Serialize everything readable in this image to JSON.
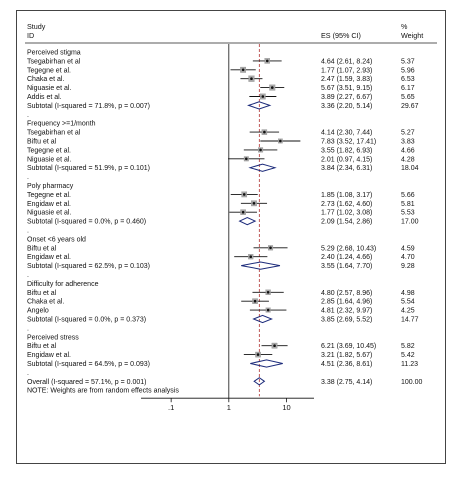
{
  "headers": {
    "study": "Study",
    "id": "ID",
    "es": "ES (95% CI)",
    "pct": "%",
    "weight": "Weight"
  },
  "chart_data": {
    "type": "forest",
    "x_scale": "log",
    "xlim": [
      0.03,
      30
    ],
    "x_ticks": [
      ".1",
      "1",
      "10"
    ],
    "x_tick_values": [
      0.1,
      1,
      10
    ],
    "null_line": 1,
    "overall_line": 3.38,
    "rows": [
      {
        "kind": "group",
        "label": "Perceived stigma"
      },
      {
        "kind": "study",
        "label": "Tsegabirhan et al",
        "es": 4.64,
        "lo": 2.61,
        "hi": 8.24,
        "text": "4.64 (2.61, 8.24)",
        "weight": "5.37"
      },
      {
        "kind": "study",
        "label": "Tegegne et al.",
        "es": 1.77,
        "lo": 1.07,
        "hi": 2.93,
        "text": "1.77 (1.07, 2.93)",
        "weight": "5.96"
      },
      {
        "kind": "study",
        "label": "Chaka et al.",
        "es": 2.47,
        "lo": 1.59,
        "hi": 3.83,
        "text": "2.47 (1.59, 3.83)",
        "weight": "6.53"
      },
      {
        "kind": "study",
        "label": "Niguasie et al.",
        "es": 5.67,
        "lo": 3.51,
        "hi": 9.15,
        "text": "5.67 (3.51, 9.15)",
        "weight": "6.17"
      },
      {
        "kind": "study",
        "label": "Addis et al.",
        "es": 3.89,
        "lo": 2.27,
        "hi": 6.67,
        "text": "3.89 (2.27, 6.67)",
        "weight": "5.65"
      },
      {
        "kind": "subtotal",
        "label": "Subtotal  (I-squared = 71.8%, p = 0.007)",
        "es": 3.36,
        "lo": 2.2,
        "hi": 5.14,
        "text": "3.36 (2.20, 5.14)",
        "weight": "29.67"
      },
      {
        "kind": "dot",
        "label": "."
      },
      {
        "kind": "group",
        "label": "Frequency >=1/month"
      },
      {
        "kind": "study",
        "label": "Tsegabirhan et al",
        "es": 4.14,
        "lo": 2.3,
        "hi": 7.44,
        "text": "4.14 (2.30, 7.44)",
        "weight": "5.27"
      },
      {
        "kind": "study",
        "label": "Biftu et al",
        "es": 7.83,
        "lo": 3.52,
        "hi": 17.41,
        "text": "7.83 (3.52, 17.41)",
        "weight": "3.83"
      },
      {
        "kind": "study",
        "label": "Tegegne et al.",
        "es": 3.55,
        "lo": 1.82,
        "hi": 6.93,
        "text": "3.55 (1.82, 6.93)",
        "weight": "4.66"
      },
      {
        "kind": "study",
        "label": "Niguasie et al.",
        "es": 2.01,
        "lo": 0.97,
        "hi": 4.15,
        "text": "2.01 (0.97, 4.15)",
        "weight": "4.28"
      },
      {
        "kind": "subtotal",
        "label": "Subtotal  (I-squared = 51.9%, p = 0.101)",
        "es": 3.84,
        "lo": 2.34,
        "hi": 6.31,
        "text": "3.84 (2.34, 6.31)",
        "weight": "18.04"
      },
      {
        "kind": "dot",
        "label": "."
      },
      {
        "kind": "group",
        "label": "Poly pharmacy"
      },
      {
        "kind": "study",
        "label": "Tegegne et al.",
        "es": 1.85,
        "lo": 1.08,
        "hi": 3.17,
        "text": "1.85 (1.08, 3.17)",
        "weight": "5.66"
      },
      {
        "kind": "study",
        "label": "Engidaw et al.",
        "es": 2.73,
        "lo": 1.62,
        "hi": 4.6,
        "text": "2.73 (1.62, 4.60)",
        "weight": "5.81"
      },
      {
        "kind": "study",
        "label": "Niguasie et al.",
        "es": 1.77,
        "lo": 1.02,
        "hi": 3.08,
        "text": "1.77 (1.02, 3.08)",
        "weight": "5.53"
      },
      {
        "kind": "subtotal",
        "label": "Subtotal  (I-squared = 0.0%, p = 0.460)",
        "es": 2.09,
        "lo": 1.54,
        "hi": 2.86,
        "text": "2.09 (1.54, 2.86)",
        "weight": "17.00"
      },
      {
        "kind": "dot",
        "label": "."
      },
      {
        "kind": "group",
        "label": "Onset <6 years old"
      },
      {
        "kind": "study",
        "label": "Biftu et al",
        "es": 5.29,
        "lo": 2.68,
        "hi": 10.43,
        "text": "5.29 (2.68, 10.43)",
        "weight": "4.59"
      },
      {
        "kind": "study",
        "label": "Engidaw et al.",
        "es": 2.4,
        "lo": 1.24,
        "hi": 4.66,
        "text": "2.40 (1.24, 4.66)",
        "weight": "4.70"
      },
      {
        "kind": "subtotal",
        "label": "Subtotal  (I-squared = 62.5%, p = 0.103)",
        "es": 3.55,
        "lo": 1.64,
        "hi": 7.7,
        "text": "3.55 (1.64, 7.70)",
        "weight": "9.28"
      },
      {
        "kind": "dot",
        "label": "."
      },
      {
        "kind": "group",
        "label": "Difficulty for adherence"
      },
      {
        "kind": "study",
        "label": "Biftu et al",
        "es": 4.8,
        "lo": 2.57,
        "hi": 8.96,
        "text": "4.80 (2.57, 8.96)",
        "weight": "4.98"
      },
      {
        "kind": "study",
        "label": "Chaka et al.",
        "es": 2.85,
        "lo": 1.64,
        "hi": 4.96,
        "text": "2.85 (1.64, 4.96)",
        "weight": "5.54"
      },
      {
        "kind": "study",
        "label": "Angelo",
        "es": 4.81,
        "lo": 2.32,
        "hi": 9.97,
        "text": "4.81 (2.32, 9.97)",
        "weight": "4.25"
      },
      {
        "kind": "subtotal",
        "label": "Subtotal  (I-squared = 0.0%, p = 0.373)",
        "es": 3.85,
        "lo": 2.69,
        "hi": 5.52,
        "text": "3.85 (2.69, 5.52)",
        "weight": "14.77"
      },
      {
        "kind": "dot",
        "label": "."
      },
      {
        "kind": "group",
        "label": "Perceived stress"
      },
      {
        "kind": "study",
        "label": "Biftu et al",
        "es": 6.21,
        "lo": 3.69,
        "hi": 10.45,
        "text": "6.21 (3.69, 10.45)",
        "weight": "5.82"
      },
      {
        "kind": "study",
        "label": "Engidaw et al.",
        "es": 3.21,
        "lo": 1.82,
        "hi": 5.67,
        "text": "3.21 (1.82, 5.67)",
        "weight": "5.42"
      },
      {
        "kind": "subtotal",
        "label": "Subtotal  (I-squared = 64.5%, p = 0.093)",
        "es": 4.51,
        "lo": 2.36,
        "hi": 8.61,
        "text": "4.51 (2.36, 8.61)",
        "weight": "11.23"
      },
      {
        "kind": "dot",
        "label": "."
      },
      {
        "kind": "overall",
        "label": "Overall  (I-squared = 57.1%, p = 0.001)",
        "es": 3.38,
        "lo": 2.75,
        "hi": 4.14,
        "text": "3.38 (2.75, 4.14)",
        "weight": "100.00"
      },
      {
        "kind": "note",
        "label": "NOTE: Weights are from random effects analysis"
      }
    ]
  }
}
